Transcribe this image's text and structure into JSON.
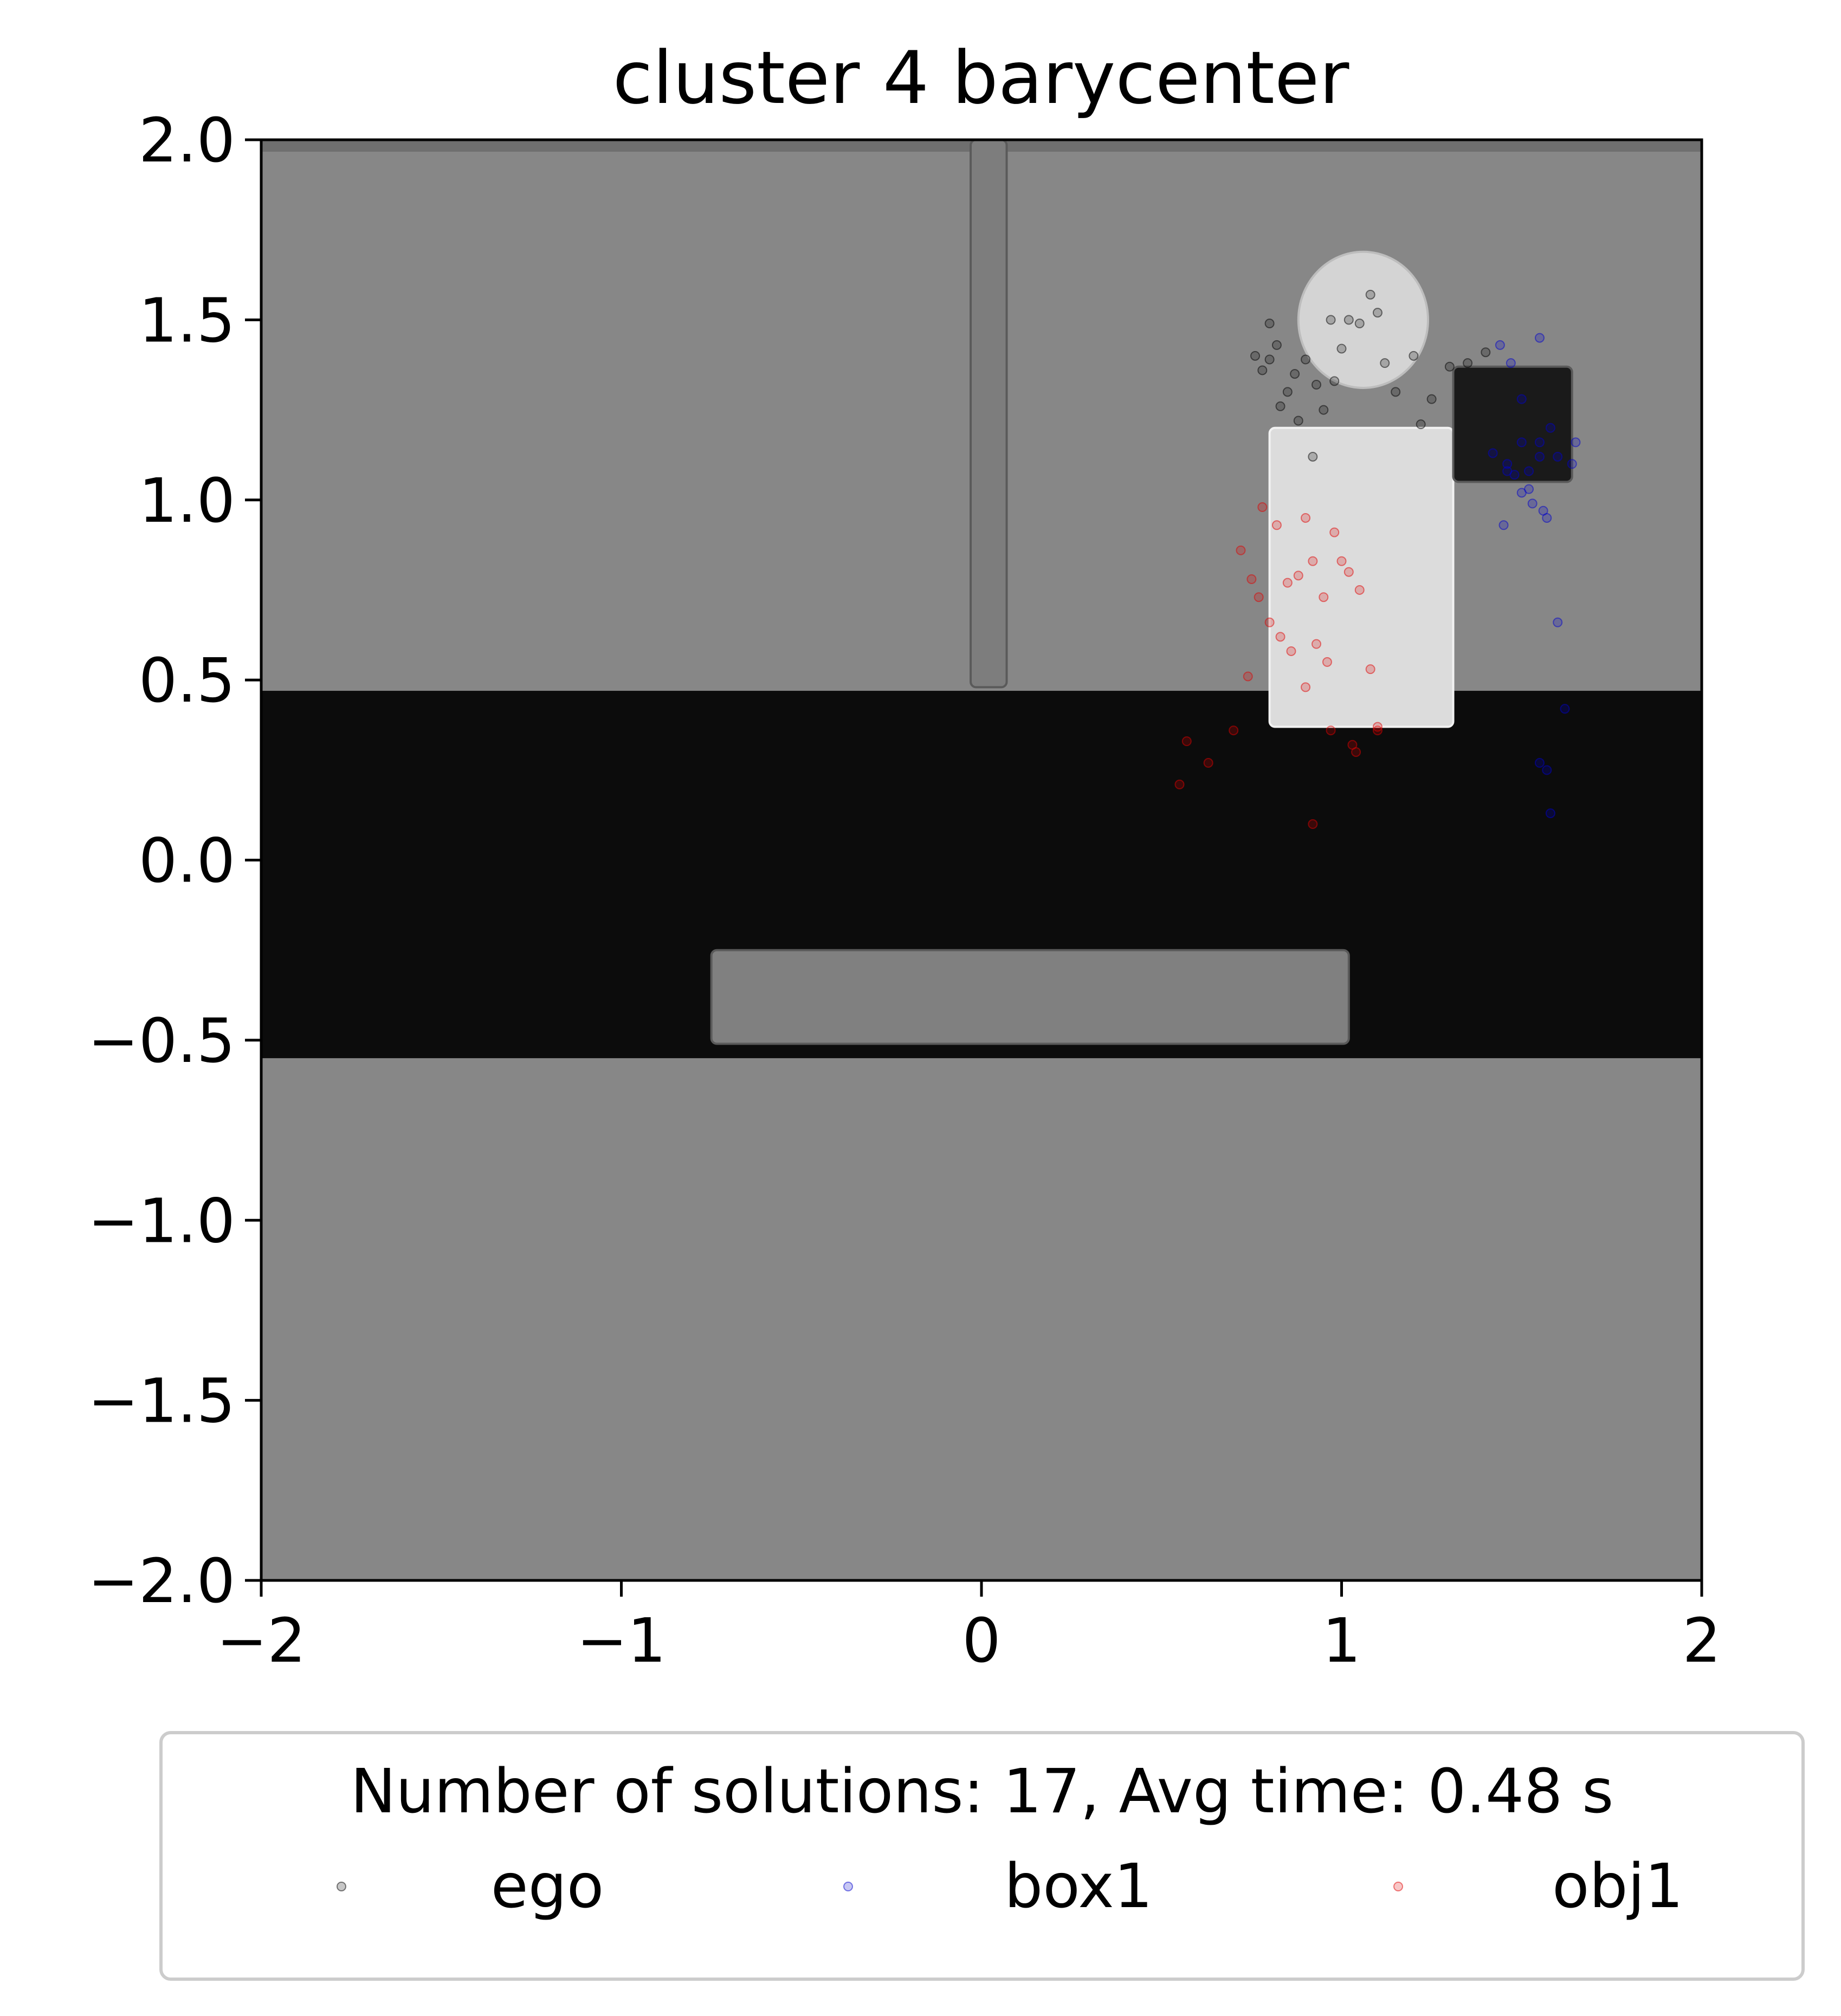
{
  "chart_data": {
    "type": "scatter",
    "title": "cluster 4 barycenter",
    "xlabel": "",
    "ylabel": "",
    "xlim": [
      -2,
      2
    ],
    "ylim": [
      -2,
      2
    ],
    "xticks": [
      "−2",
      "−1",
      "0",
      "1",
      "2"
    ],
    "yticks": [
      "2.0",
      "1.5",
      "1.0",
      "0.5",
      "0.0",
      "−0.5",
      "−1.0",
      "−1.5",
      "−2.0"
    ],
    "grid": false,
    "legend": {
      "placement": "bottom-center-outside",
      "title": "Number of solutions: 17, Avg time: 0.48 s",
      "entries": [
        "ego",
        "box1",
        "obj1"
      ]
    },
    "background_scene": {
      "floor_color": "#878787",
      "table_band": {
        "y_range": [
          -0.55,
          0.47
        ],
        "color": "#0c0c0c"
      },
      "objects": [
        {
          "kind": "pole",
          "x_range": [
            -0.03,
            0.07
          ],
          "y_range": [
            0.48,
            2.0
          ],
          "color": "#7d7d7d"
        },
        {
          "kind": "shelf",
          "x_range": [
            -0.75,
            1.02
          ],
          "y_range": [
            -0.51,
            -0.25
          ],
          "color": "#808080"
        },
        {
          "kind": "white-box",
          "x_range": [
            0.8,
            1.31
          ],
          "y_range": [
            0.37,
            1.2
          ],
          "color": "#dcdcdc"
        },
        {
          "kind": "disc",
          "cx": 1.06,
          "cy": 1.5,
          "r": 0.18,
          "color": "#d4d4d4"
        },
        {
          "kind": "black-box",
          "x_range": [
            1.31,
            1.64
          ],
          "y_range": [
            1.05,
            1.37
          ],
          "color": "#1a1a1a"
        }
      ]
    },
    "series": [
      {
        "name": "ego",
        "color": "#000000",
        "x": [
          0.8,
          0.82,
          0.78,
          0.9,
          0.93,
          0.97,
          1.0,
          1.02,
          1.05,
          1.08,
          1.12,
          1.15,
          1.2,
          1.25,
          0.85,
          0.88,
          0.95,
          0.98,
          0.83,
          0.76,
          1.3,
          1.35,
          1.4,
          0.92,
          1.1,
          1.22,
          0.8,
          0.87
        ],
        "y": [
          1.49,
          1.43,
          1.36,
          1.39,
          1.32,
          1.5,
          1.42,
          1.5,
          1.49,
          1.57,
          1.38,
          1.3,
          1.4,
          1.28,
          1.3,
          1.22,
          1.25,
          1.33,
          1.26,
          1.4,
          1.37,
          1.38,
          1.41,
          1.12,
          1.52,
          1.21,
          1.39,
          1.35
        ]
      },
      {
        "name": "box1",
        "color": "#0000cc",
        "x": [
          1.44,
          1.47,
          1.5,
          1.52,
          1.55,
          1.58,
          1.6,
          1.42,
          1.48,
          1.53,
          1.57,
          1.62,
          1.45,
          1.5,
          1.55,
          1.46,
          1.52,
          1.56,
          1.6,
          1.64,
          1.65,
          1.55,
          1.57,
          1.58,
          1.46,
          1.5,
          1.55
        ],
        "y": [
          1.43,
          1.38,
          1.28,
          1.08,
          1.12,
          1.2,
          0.66,
          1.13,
          1.07,
          0.99,
          0.95,
          0.42,
          0.93,
          1.02,
          1.16,
          1.08,
          1.03,
          0.97,
          1.12,
          1.1,
          1.16,
          0.27,
          0.25,
          0.13,
          1.1,
          1.16,
          1.45
        ]
      },
      {
        "name": "obj1",
        "color": "#e00000",
        "x": [
          0.72,
          0.75,
          0.78,
          0.82,
          0.85,
          0.88,
          0.9,
          0.92,
          0.95,
          0.98,
          1.0,
          1.02,
          1.05,
          1.08,
          0.8,
          0.83,
          0.86,
          0.9,
          0.93,
          0.96,
          0.74,
          0.77,
          0.97,
          1.03,
          1.1,
          0.55,
          0.63,
          0.57,
          0.7,
          0.92,
          1.04,
          1.1
        ],
        "y": [
          0.86,
          0.78,
          0.98,
          0.93,
          0.77,
          0.79,
          0.95,
          0.83,
          0.73,
          0.91,
          0.83,
          0.8,
          0.75,
          0.53,
          0.66,
          0.62,
          0.58,
          0.48,
          0.6,
          0.55,
          0.51,
          0.73,
          0.36,
          0.32,
          0.36,
          0.21,
          0.27,
          0.33,
          0.36,
          0.1,
          0.3,
          0.37
        ]
      }
    ]
  }
}
